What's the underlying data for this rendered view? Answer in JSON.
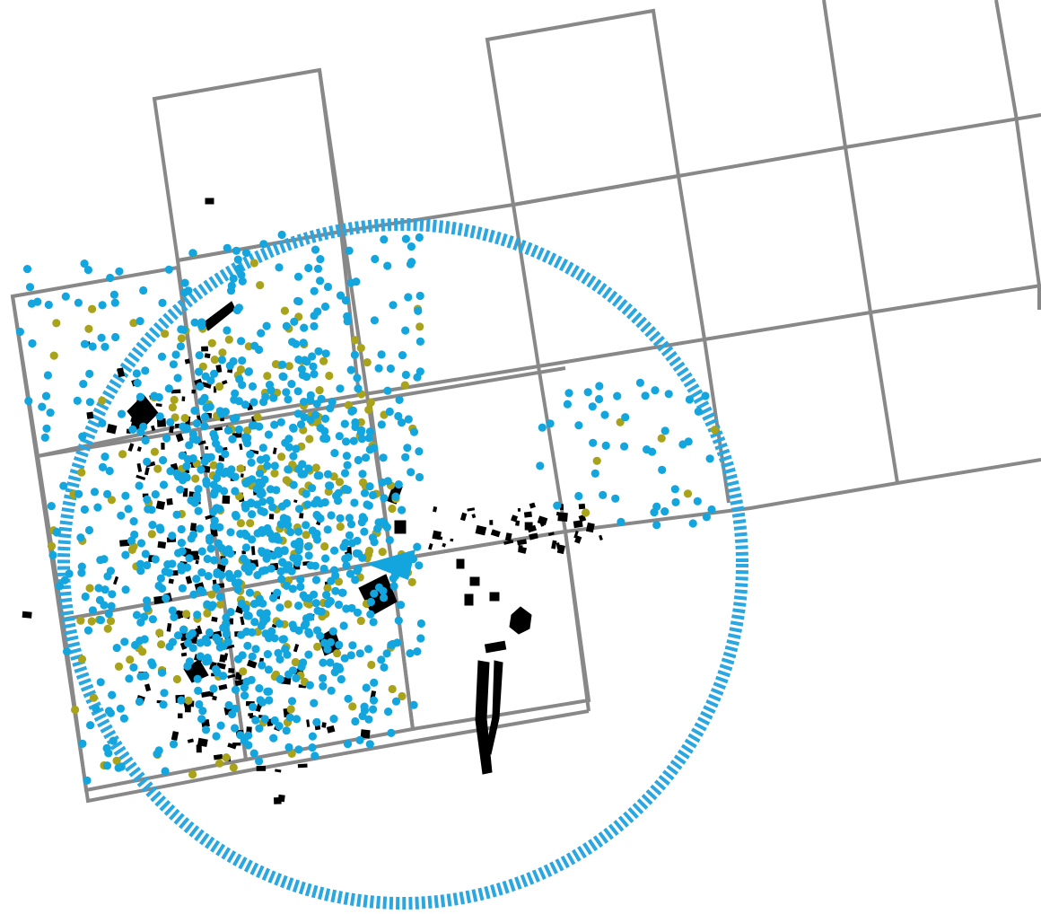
{
  "map": {
    "colors": {
      "background": "#ffffff",
      "grid": "#888888",
      "buffer_ring": "#2aa6e0",
      "point_primary": "#13a5de",
      "point_secondary": "#a8a31a",
      "buildings": "#000000",
      "marker": "#13a5de"
    },
    "layers": [
      "tile-grid",
      "buffer-ring",
      "building-footprints",
      "survey-points-blue",
      "survey-points-olive",
      "location-marker"
    ],
    "point_counts": {
      "blue": 950,
      "olive": 230
    }
  }
}
